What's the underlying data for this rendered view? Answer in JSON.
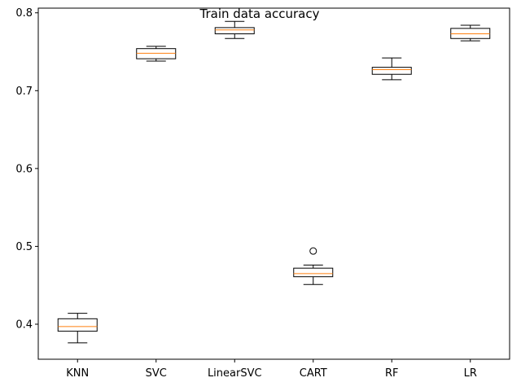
{
  "chart_data": {
    "type": "boxplot",
    "title": "Train data accuracy",
    "xlabel": "",
    "ylabel": "",
    "ylim": [
      0.355,
      0.806
    ],
    "yticks": [
      0.4,
      0.5,
      0.6,
      0.7,
      0.8
    ],
    "ytick_labels": [
      "0.4",
      "0.5",
      "0.6",
      "0.7",
      "0.8"
    ],
    "grid": false,
    "legend": "none",
    "categories": [
      "KNN",
      "SVC",
      "LinearSVC",
      "CART",
      "RF",
      "LR"
    ],
    "boxes": [
      {
        "whisker_low": 0.376,
        "q1": 0.391,
        "median": 0.397,
        "q3": 0.407,
        "whisker_high": 0.414,
        "fliers": []
      },
      {
        "whisker_low": 0.738,
        "q1": 0.741,
        "median": 0.748,
        "q3": 0.754,
        "whisker_high": 0.757,
        "fliers": []
      },
      {
        "whisker_low": 0.767,
        "q1": 0.773,
        "median": 0.778,
        "q3": 0.781,
        "whisker_high": 0.789,
        "fliers": []
      },
      {
        "whisker_low": 0.451,
        "q1": 0.461,
        "median": 0.465,
        "q3": 0.472,
        "whisker_high": 0.476,
        "fliers": [
          0.494
        ]
      },
      {
        "whisker_low": 0.714,
        "q1": 0.721,
        "median": 0.727,
        "q3": 0.73,
        "whisker_high": 0.742,
        "fliers": []
      },
      {
        "whisker_low": 0.764,
        "q1": 0.767,
        "median": 0.773,
        "q3": 0.78,
        "whisker_high": 0.784,
        "fliers": []
      }
    ],
    "colors": {
      "box": "#000000",
      "median": "#ff7f0e",
      "axis": "#000000",
      "background": "#ffffff"
    }
  }
}
